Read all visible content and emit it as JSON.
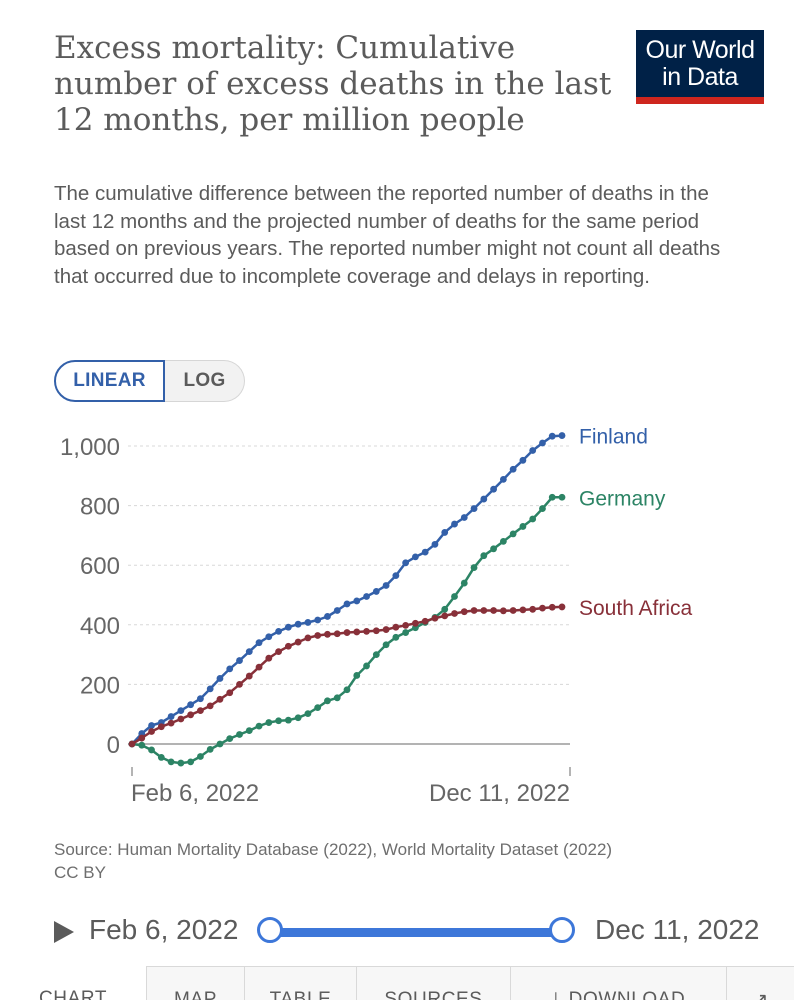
{
  "header": {
    "title": "Excess mortality: Cumulative number of excess deaths in the last 12 months, per million people",
    "subtitle": "The cumulative difference between the reported number of deaths in the last 12 months and the projected number of deaths for the same period based on previous years. The reported number might not count all deaths that occurred due to incomplete coverage and delays in reporting.",
    "logo_line1": "Our World",
    "logo_line2": "in Data"
  },
  "scale_toggle": {
    "linear": "LINEAR",
    "log": "LOG",
    "selected": "LINEAR"
  },
  "chart_data": {
    "type": "line",
    "title": "Excess mortality: Cumulative number of excess deaths in the last 12 months, per million people",
    "xlabel": "",
    "ylabel": "",
    "ylim": [
      0,
      1000
    ],
    "yticks": [
      0,
      200,
      400,
      600,
      800,
      1000
    ],
    "ytick_labels": [
      "0",
      "200",
      "400",
      "600",
      "800",
      "1,000"
    ],
    "x_start_label": "Feb 6, 2022",
    "x_end_label": "Dec 11, 2022",
    "weeks": 45,
    "grid": true,
    "series": [
      {
        "name": "Finland",
        "color": "#3360a9",
        "values": [
          0,
          35,
          62,
          72,
          92,
          112,
          132,
          152,
          185,
          220,
          252,
          280,
          310,
          340,
          360,
          378,
          392,
          402,
          408,
          416,
          428,
          448,
          470,
          480,
          495,
          512,
          532,
          565,
          608,
          628,
          644,
          670,
          710,
          738,
          760,
          790,
          822,
          855,
          888,
          922,
          952,
          985,
          1010,
          1033,
          1035
        ]
      },
      {
        "name": "Germany",
        "color": "#2c8465",
        "values": [
          0,
          -4,
          -20,
          -45,
          -60,
          -64,
          -60,
          -42,
          -18,
          0,
          18,
          32,
          45,
          60,
          72,
          78,
          80,
          88,
          102,
          122,
          145,
          155,
          182,
          230,
          262,
          300,
          333,
          358,
          374,
          390,
          408,
          425,
          452,
          495,
          540,
          592,
          632,
          655,
          680,
          705,
          730,
          755,
          790,
          828,
          828
        ]
      },
      {
        "name": "South Africa",
        "color": "#883039",
        "values": [
          0,
          20,
          42,
          58,
          70,
          84,
          98,
          112,
          128,
          150,
          172,
          200,
          228,
          258,
          288,
          310,
          328,
          342,
          356,
          364,
          368,
          370,
          374,
          376,
          378,
          380,
          384,
          392,
          398,
          405,
          412,
          422,
          430,
          438,
          444,
          448,
          448,
          448,
          447,
          448,
          450,
          452,
          456,
          459,
          460
        ]
      }
    ]
  },
  "source": {
    "line1": "Source: Human Mortality Database (2022), World Mortality Dataset (2022)",
    "line2": "CC BY"
  },
  "timeline": {
    "start": "Feb 6, 2022",
    "end": "Dec 11, 2022"
  },
  "tabs": [
    "CHART",
    "MAP",
    "TABLE",
    "SOURCES",
    "DOWNLOAD"
  ]
}
